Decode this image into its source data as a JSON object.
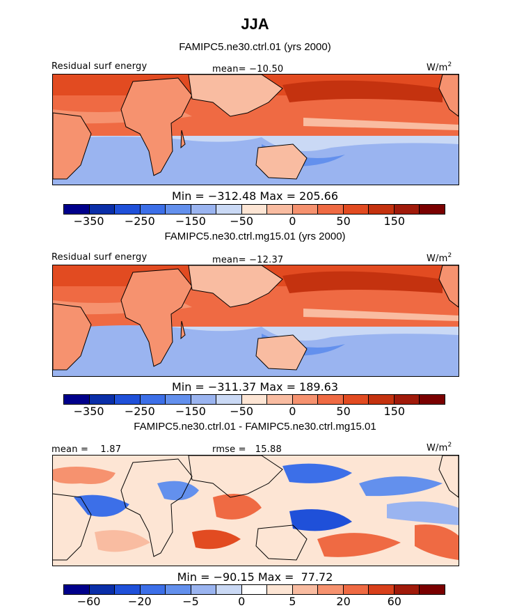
{
  "figure": {
    "title": "JJA"
  },
  "colormap_abs": [
    "#00008b",
    "#0a2ea8",
    "#1f50d9",
    "#3c6fe8",
    "#6390ed",
    "#9ab4f0",
    "#cad9f5",
    "#fde5d4",
    "#f9bca1",
    "#f6926f",
    "#ef6a43",
    "#e24b21",
    "#c4320f",
    "#a01a0a",
    "#7a0000"
  ],
  "colormap_diff": [
    "#00008b",
    "#0a2ea8",
    "#1f50d9",
    "#3c6fe8",
    "#6390ed",
    "#9ab4f0",
    "#cad9f5",
    "#ffffff",
    "#fde5d4",
    "#f9bca1",
    "#f6926f",
    "#ef6a43",
    "#d8401b",
    "#a01a0a",
    "#7a0000"
  ],
  "chart_data": [
    {
      "type": "heatmap",
      "title": "FAMIPC5.ne30.ctrl.01 (yrs 2000)",
      "variable": "Residual surf energy",
      "units": "W/m",
      "units_sup": "2",
      "mean_label": "mean= −10.50",
      "stats_label": "Min = −312.48 Max = 205.66",
      "min": -312.48,
      "max": 205.66,
      "mean": -10.5,
      "colorbar_ticks": [
        "−350",
        "−250",
        "−150",
        "−50",
        "0",
        "50",
        "150"
      ]
    },
    {
      "type": "heatmap",
      "title": "FAMIPC5.ne30.ctrl.mg15.01 (yrs 2000)",
      "variable": "Residual surf energy",
      "units": "W/m",
      "units_sup": "2",
      "mean_label": "mean= −12.37",
      "stats_label": "Min = −311.37 Max = 189.63",
      "min": -311.37,
      "max": 189.63,
      "mean": -12.37,
      "colorbar_ticks": [
        "−350",
        "−250",
        "−150",
        "−50",
        "0",
        "50",
        "150"
      ]
    },
    {
      "type": "heatmap",
      "title": "FAMIPC5.ne30.ctrl.01 - FAMIPC5.ne30.ctrl.mg15.01",
      "mean_label": "mean =    1.87",
      "rmse_label": "rmse =   15.88",
      "units": "W/m",
      "units_sup": "2",
      "stats_label": "Min = −90.15 Max =  77.72",
      "min": -90.15,
      "max": 77.72,
      "mean": 1.87,
      "rmse": 15.88,
      "colorbar_ticks": [
        "−60",
        "−20",
        "−5",
        "0",
        "5",
        "20",
        "60"
      ]
    }
  ]
}
